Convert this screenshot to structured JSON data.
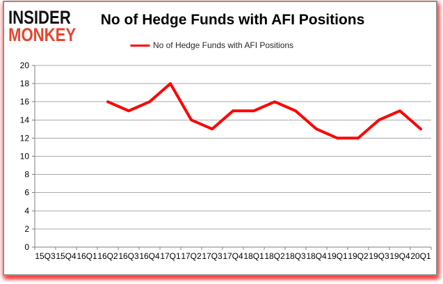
{
  "logo": {
    "line1": "INSIDER",
    "line2": "MONKEY",
    "line1_color": "#111111",
    "line2_color": "#e8432d"
  },
  "header": {
    "title": "No of Hedge Funds with AFI Positions"
  },
  "legend": {
    "label": "No of Hedge Funds with AFI Positions",
    "line_color": "#ff0000"
  },
  "colors": {
    "series_red": "#ff0000",
    "gridline_gray": "#a8a8a8",
    "axis_gray": "#7f7f7f",
    "border_gray": "#8f8f8f",
    "glow_red": "#ff5a5a",
    "logo_red": "#e8432d"
  },
  "chart_data": {
    "type": "line",
    "title": "No of Hedge Funds with AFI Positions",
    "categories": [
      "15Q3",
      "15Q4",
      "16Q1",
      "16Q2",
      "16Q3",
      "16Q4",
      "17Q1",
      "17Q2",
      "17Q3",
      "17Q4",
      "18Q1",
      "18Q2",
      "18Q3",
      "18Q4",
      "19Q1",
      "19Q2",
      "19Q3",
      "19Q4",
      "20Q1"
    ],
    "series": [
      {
        "name": "No of Hedge Funds with AFI Positions",
        "color": "#ff0000",
        "values": [
          null,
          null,
          null,
          16,
          15,
          16,
          18,
          14,
          13,
          15,
          15,
          16,
          15,
          13,
          12,
          12,
          14,
          15,
          13
        ]
      }
    ],
    "xlabel": "",
    "ylabel": "",
    "ylim": [
      0,
      20
    ],
    "yticks": [
      0,
      2,
      4,
      6,
      8,
      10,
      12,
      14,
      16,
      18,
      20
    ],
    "grid": true,
    "legend_position": "top-center"
  }
}
